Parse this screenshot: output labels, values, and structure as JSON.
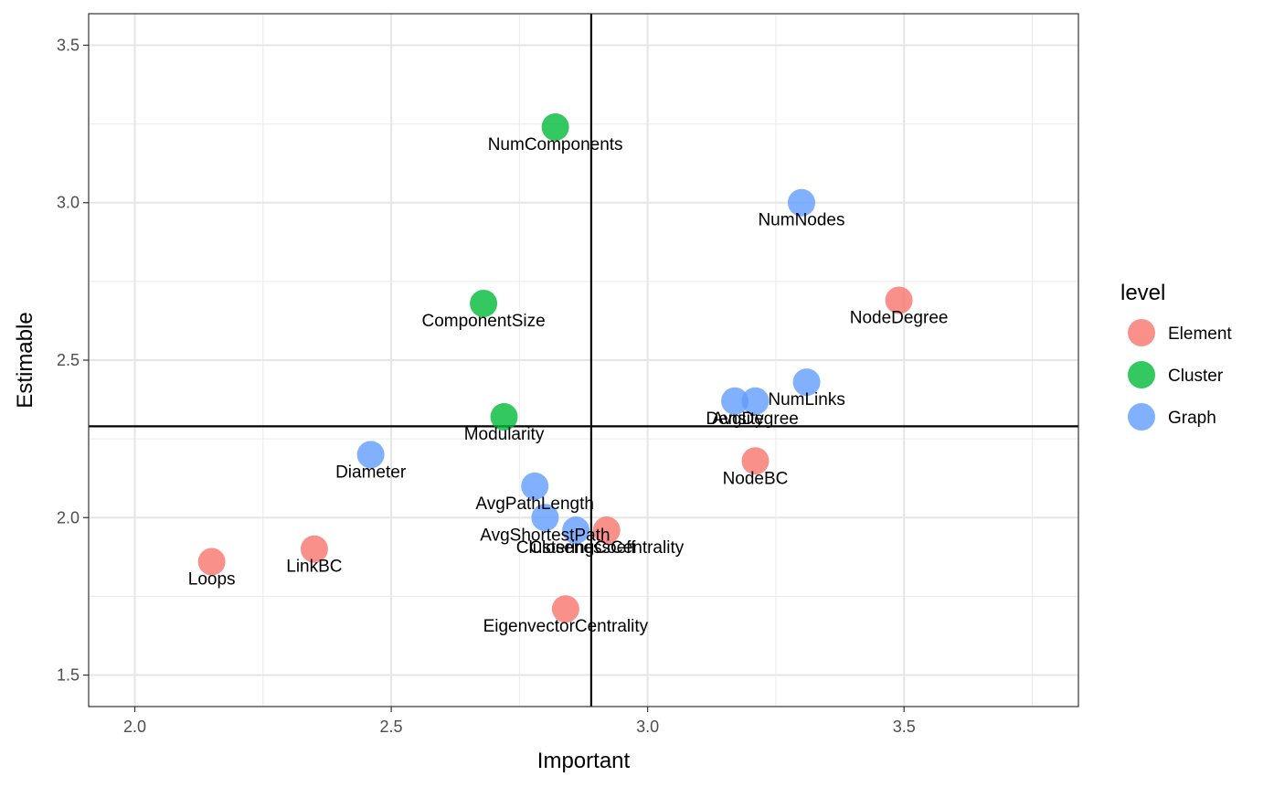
{
  "chart_data": {
    "type": "scatter",
    "xlabel": "Important",
    "ylabel": "Estimable",
    "xlim": [
      1.91,
      3.84
    ],
    "ylim": [
      1.4,
      3.6
    ],
    "x_ticks": [
      "2.0",
      "2.5",
      "3.0",
      "3.5"
    ],
    "y_ticks": [
      "1.5",
      "2.0",
      "2.5",
      "3.0",
      "3.5"
    ],
    "vline_x": 2.89,
    "hline_y": 2.29,
    "legend": {
      "title": "level",
      "position": "right",
      "entries": [
        {
          "name": "Element",
          "color": "#F8766D"
        },
        {
          "name": "Cluster",
          "color": "#00BA38"
        },
        {
          "name": "Graph",
          "color": "#619CFF"
        }
      ]
    },
    "points": [
      {
        "label": "NumComponents",
        "x": 2.82,
        "y": 3.24,
        "level": "Cluster"
      },
      {
        "label": "NumNodes",
        "x": 3.3,
        "y": 3.0,
        "level": "Graph"
      },
      {
        "label": "NodeDegree",
        "x": 3.49,
        "y": 2.69,
        "level": "Element"
      },
      {
        "label": "ComponentSize",
        "x": 2.68,
        "y": 2.68,
        "level": "Cluster"
      },
      {
        "label": "NumLinks",
        "x": 3.31,
        "y": 2.43,
        "level": "Graph"
      },
      {
        "label": "Density",
        "x": 3.17,
        "y": 2.37,
        "level": "Graph"
      },
      {
        "label": "AvgDegree",
        "x": 3.21,
        "y": 2.37,
        "level": "Graph"
      },
      {
        "label": "Modularity",
        "x": 2.72,
        "y": 2.32,
        "level": "Cluster"
      },
      {
        "label": "Diameter",
        "x": 2.46,
        "y": 2.2,
        "level": "Graph"
      },
      {
        "label": "NodeBC",
        "x": 3.21,
        "y": 2.18,
        "level": "Element"
      },
      {
        "label": "AvgPathLength",
        "x": 2.78,
        "y": 2.1,
        "level": "Graph"
      },
      {
        "label": "AvgShortestPath",
        "x": 2.8,
        "y": 2.0,
        "level": "Graph"
      },
      {
        "label": "ClusteringCoeff",
        "x": 2.86,
        "y": 1.96,
        "level": "Graph"
      },
      {
        "label": "ClosenessCentrality",
        "x": 2.92,
        "y": 1.96,
        "level": "Element"
      },
      {
        "label": "Loops",
        "x": 2.15,
        "y": 1.86,
        "level": "Element"
      },
      {
        "label": "LinkBC",
        "x": 2.35,
        "y": 1.9,
        "level": "Element"
      },
      {
        "label": "EigenvectorCentrality",
        "x": 2.84,
        "y": 1.71,
        "level": "Element"
      }
    ]
  }
}
